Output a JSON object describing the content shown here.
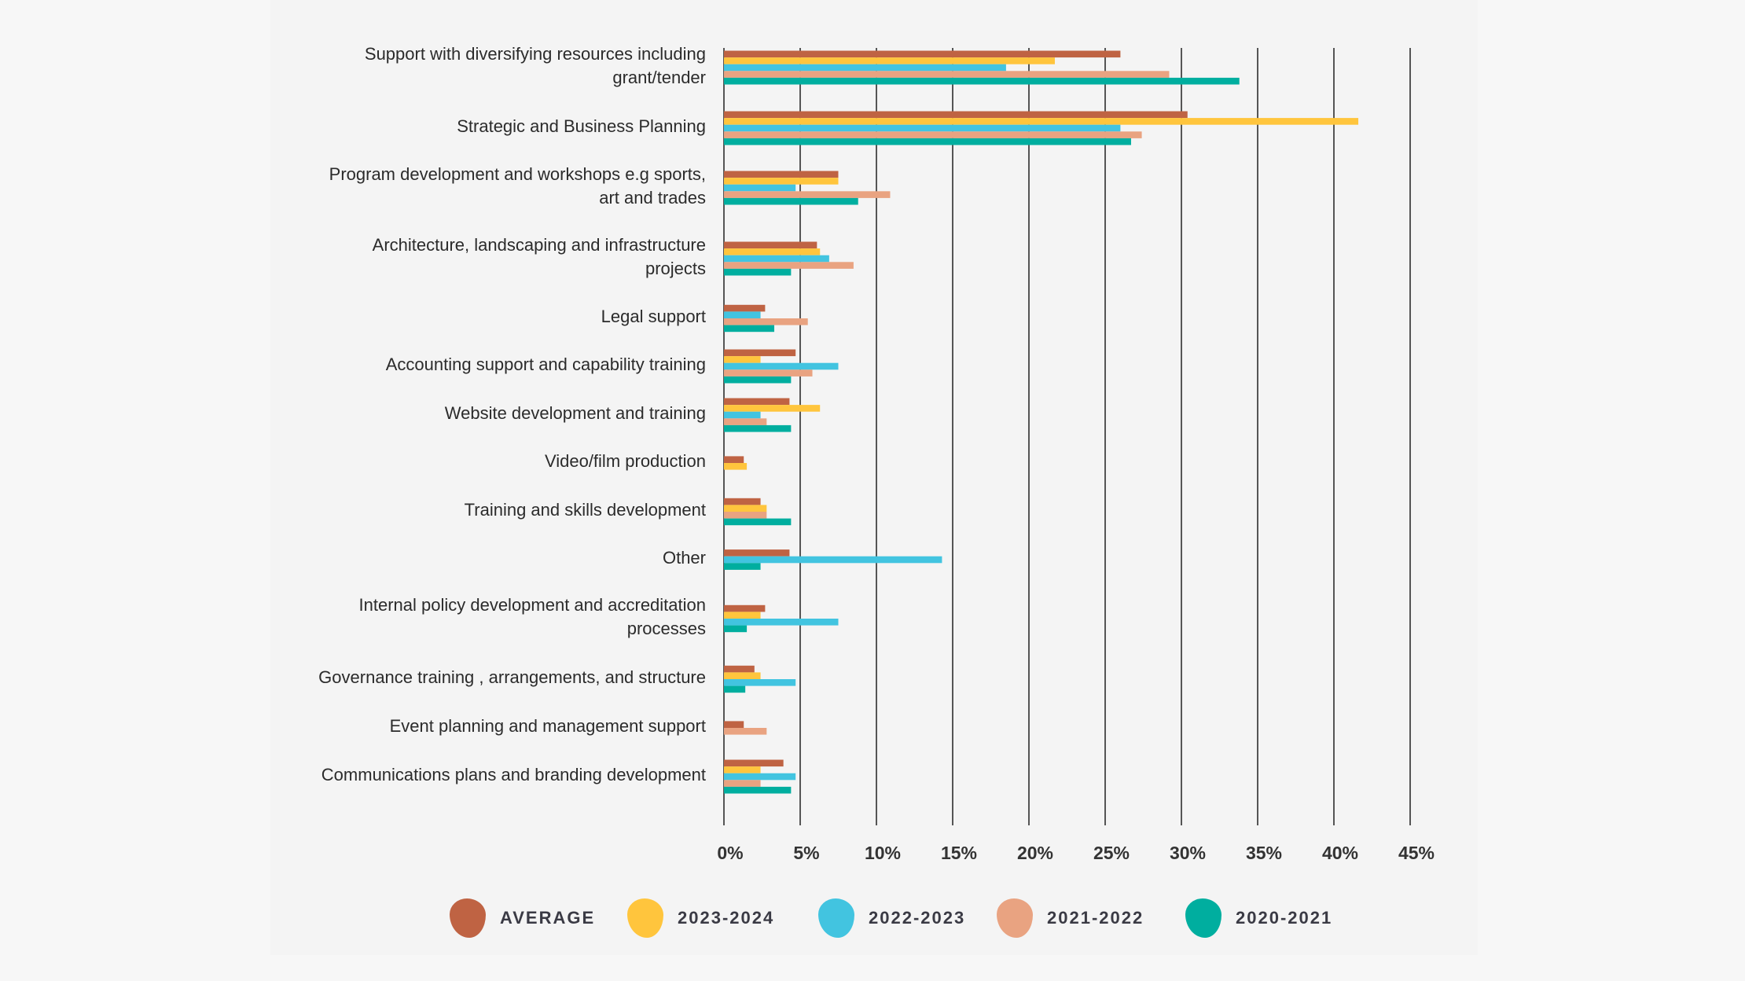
{
  "chart_data": {
    "type": "bar",
    "orientation": "horizontal",
    "categories": [
      "Support with diversifying resources including grant/tender",
      "Strategic and Business Planning",
      "Program development and workshops e.g sports, art and trades",
      "Architecture, landscaping and infrastructure projects",
      "Legal support",
      "Accounting support and capability training",
      "Website development and training",
      "Video/film production",
      "Training and skills development",
      "Other",
      "Internal policy development and accreditation processes",
      "Governance training , arrangements, and structure",
      "Event planning and management support",
      "Communications plans and branding development"
    ],
    "category_lines": [
      [
        "Support with diversifying resources including",
        "grant/tender"
      ],
      [
        "Strategic and Business Planning"
      ],
      [
        "Program development and workshops e.g sports,",
        "art and trades"
      ],
      [
        "Architecture, landscaping and infrastructure",
        "projects"
      ],
      [
        "Legal support"
      ],
      [
        "Accounting support and capability training"
      ],
      [
        "Website development and training"
      ],
      [
        "Video/film production"
      ],
      [
        "Training and skills development"
      ],
      [
        "Other"
      ],
      [
        "Internal policy development and accreditation",
        "processes"
      ],
      [
        "Governance training , arrangements, and structure"
      ],
      [
        "Event planning and management support"
      ],
      [
        "Communications plans and branding development"
      ]
    ],
    "series": [
      {
        "name": "AVERAGE",
        "color": "#bf6343",
        "values": [
          26.0,
          30.4,
          7.5,
          6.1,
          2.7,
          4.7,
          4.3,
          1.3,
          2.4,
          4.3,
          2.7,
          2.0,
          1.3,
          3.9
        ]
      },
      {
        "name": "2023-2024",
        "color": "#ffc53d",
        "values": [
          21.7,
          41.6,
          7.5,
          6.3,
          null,
          2.4,
          6.3,
          1.5,
          2.8,
          null,
          2.4,
          2.4,
          null,
          2.4
        ]
      },
      {
        "name": "2022-2023",
        "color": "#42c4e0",
        "values": [
          18.5,
          26.0,
          4.7,
          6.9,
          2.4,
          7.5,
          2.4,
          null,
          null,
          14.3,
          7.5,
          4.7,
          null,
          4.7
        ]
      },
      {
        "name": "2021-2022",
        "color": "#e9a381",
        "values": [
          29.2,
          27.4,
          10.9,
          8.5,
          5.5,
          5.8,
          2.8,
          null,
          2.8,
          null,
          null,
          null,
          2.8,
          2.4
        ]
      },
      {
        "name": "2020-2021",
        "color": "#00ae9f",
        "values": [
          33.8,
          26.7,
          8.8,
          4.4,
          3.3,
          4.4,
          4.4,
          null,
          4.4,
          2.4,
          1.5,
          1.4,
          null,
          4.4
        ]
      }
    ],
    "xlim": [
      0,
      45
    ],
    "xticks": [
      "0%",
      "5%",
      "10%",
      "15%",
      "20%",
      "25%",
      "30%",
      "35%",
      "40%",
      "45%"
    ],
    "grid": "vertical",
    "legend_position": "bottom"
  }
}
